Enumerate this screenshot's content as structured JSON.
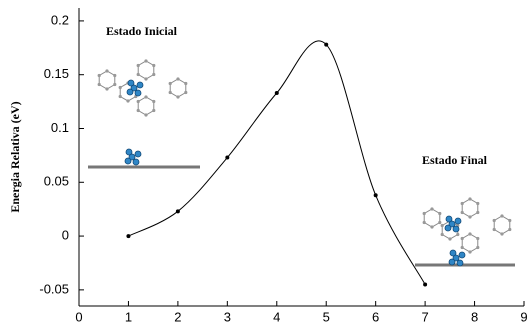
{
  "chart_data": {
    "type": "line",
    "y_label": "Energia Relativa (eV)",
    "annotations": [
      "Estado Inicial",
      "Estado Final"
    ],
    "x": [
      1,
      2,
      3,
      4,
      5,
      6,
      7
    ],
    "series": [
      {
        "color": "#000000",
        "values": [
          0,
          0.023,
          0.073,
          0.133,
          0.178,
          0.038,
          -0.045
        ]
      }
    ],
    "xlim": [
      0,
      9
    ],
    "xticks": [
      0,
      1,
      2,
      3,
      4,
      5,
      6,
      7,
      8,
      9
    ],
    "ylim": [
      -0.065,
      0.212
    ],
    "yticks": [
      -0.05,
      0,
      0.05,
      0.1,
      0.15,
      0.2
    ],
    "grid": false
  }
}
